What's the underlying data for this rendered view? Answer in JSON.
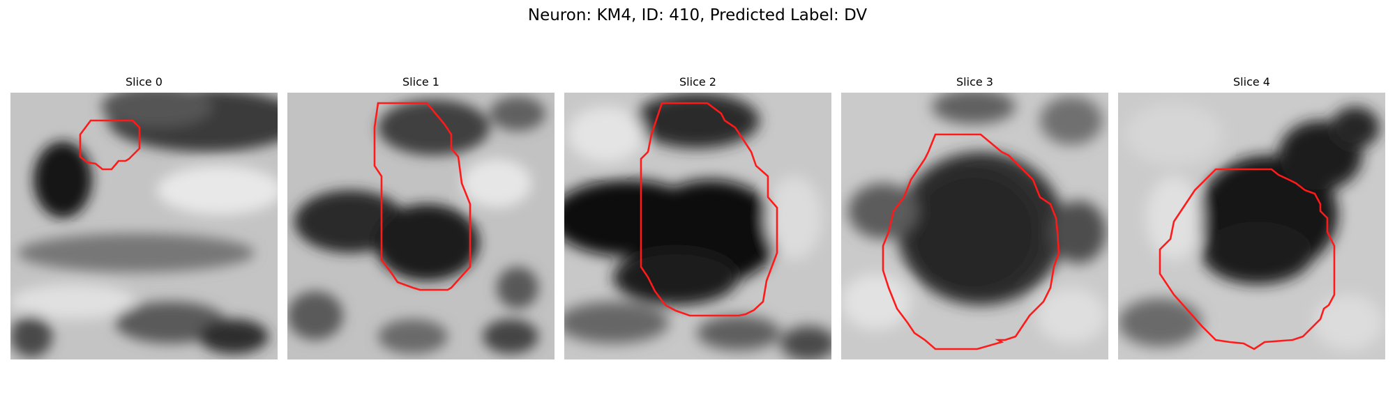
{
  "figure": {
    "title": "Neuron: KM4, ID: 410, Predicted Label: DV"
  },
  "panels": [
    {
      "title": "Slice 0"
    },
    {
      "title": "Slice 1"
    },
    {
      "title": "Slice 2"
    },
    {
      "title": "Slice 3"
    },
    {
      "title": "Slice 4"
    }
  ],
  "colors": {
    "contour": "#ff1a1a",
    "background": "#ffffff",
    "image_colormap": "gray"
  }
}
